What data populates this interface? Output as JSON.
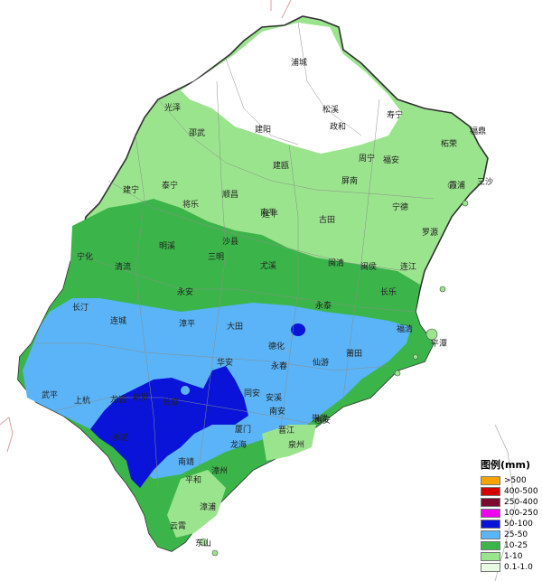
{
  "legend": {
    "title": "图例(mm)",
    "items": [
      {
        "label": ">500",
        "color": "#f6a400"
      },
      {
        "label": "400-500",
        "color": "#d40000"
      },
      {
        "label": "250-400",
        "color": "#7a0a2e"
      },
      {
        "label": "100-250",
        "color": "#ee00ee"
      },
      {
        "label": "50-100",
        "color": "#0a14d8"
      },
      {
        "label": "25-50",
        "color": "#5ab4f7"
      },
      {
        "label": "10-25",
        "color": "#3bb54a"
      },
      {
        "label": "1-10",
        "color": "#9be48e"
      },
      {
        "label": "0.1-1.0",
        "color": "#e8fbe2"
      }
    ]
  },
  "places": [
    {
      "name": "浦城"
    },
    {
      "name": "松溪"
    },
    {
      "name": "政和"
    },
    {
      "name": "寿宁"
    },
    {
      "name": "光泽"
    },
    {
      "name": "邵武"
    },
    {
      "name": "建阳"
    },
    {
      "name": "建瓯"
    },
    {
      "name": "周宁"
    },
    {
      "name": "福安"
    },
    {
      "name": "柘荣"
    },
    {
      "name": "福鼎"
    },
    {
      "name": "霞浦"
    },
    {
      "name": "三沙"
    },
    {
      "name": "泰宁"
    },
    {
      "name": "建宁"
    },
    {
      "name": "将乐"
    },
    {
      "name": "顺昌"
    },
    {
      "name": "南平"
    },
    {
      "name": "屏南"
    },
    {
      "name": "古田"
    },
    {
      "name": "宁德"
    },
    {
      "name": "罗源"
    },
    {
      "name": "明溪"
    },
    {
      "name": "延平"
    },
    {
      "name": "沙县"
    },
    {
      "name": "三明"
    },
    {
      "name": "尤溪"
    },
    {
      "name": "闽清"
    },
    {
      "name": "闽侯"
    },
    {
      "name": "连江"
    },
    {
      "name": "宁化"
    },
    {
      "name": "清流"
    },
    {
      "name": "永安"
    },
    {
      "name": "大田"
    },
    {
      "name": "德化"
    },
    {
      "name": "永泰"
    },
    {
      "name": "长乐"
    },
    {
      "name": "福清"
    },
    {
      "name": "平潭"
    },
    {
      "name": "长汀"
    },
    {
      "name": "连城"
    },
    {
      "name": "漳平"
    },
    {
      "name": "永春"
    },
    {
      "name": "仙游"
    },
    {
      "name": "莆田"
    },
    {
      "name": "武平"
    },
    {
      "name": "上杭"
    },
    {
      "name": "龙岩"
    },
    {
      "name": "华安"
    },
    {
      "name": "安溪"
    },
    {
      "name": "南安"
    },
    {
      "name": "晋江"
    },
    {
      "name": "泉州"
    },
    {
      "name": "崇武"
    },
    {
      "name": "永定"
    },
    {
      "name": "南靖"
    },
    {
      "name": "平和"
    },
    {
      "name": "漳州"
    },
    {
      "name": "厦门"
    },
    {
      "name": "漳浦"
    },
    {
      "name": "云霄"
    },
    {
      "name": "东山"
    },
    {
      "name": "龙海"
    },
    {
      "name": "同安"
    },
    {
      "name": "惠安"
    },
    {
      "name": "新罗"
    },
    {
      "name": "长泰"
    }
  ]
}
